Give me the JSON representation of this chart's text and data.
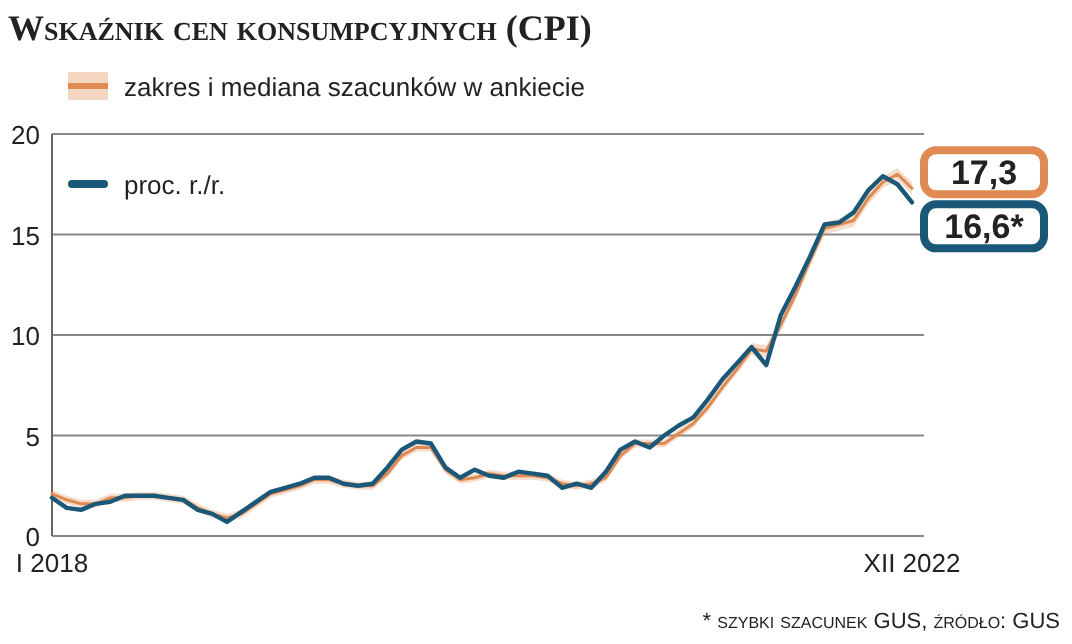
{
  "chart_data": {
    "type": "line",
    "title": "Wskaźnik cen konsumpcyjnych (CPI)",
    "categories": [
      "I 2018",
      null,
      null,
      null,
      null,
      null,
      null,
      null,
      null,
      null,
      null,
      null,
      null,
      null,
      null,
      null,
      null,
      null,
      null,
      null,
      null,
      null,
      null,
      null,
      null,
      null,
      null,
      null,
      null,
      null,
      null,
      null,
      null,
      null,
      null,
      null,
      null,
      null,
      null,
      null,
      null,
      null,
      null,
      null,
      null,
      null,
      null,
      null,
      null,
      null,
      null,
      null,
      null,
      null,
      null,
      null,
      null,
      null,
      null,
      "XII 2022"
    ],
    "ylim": [
      0,
      20
    ],
    "yticks": [
      0,
      5,
      10,
      15,
      20
    ],
    "grid": "y",
    "legend": "top left",
    "series": [
      {
        "name": "zakres i mediana szacunków w ankiecie",
        "color": "#df8a52",
        "values": [
          2.1,
          1.8,
          1.6,
          1.6,
          1.9,
          1.9,
          2.0,
          2.0,
          1.9,
          1.8,
          1.4,
          1.1,
          0.9,
          1.1,
          1.6,
          2.1,
          2.3,
          2.5,
          2.8,
          2.8,
          2.6,
          2.5,
          2.5,
          3.1,
          4.0,
          4.4,
          4.4,
          3.3,
          2.8,
          2.9,
          3.1,
          3.0,
          3.0,
          3.0,
          2.9,
          2.6,
          2.5,
          2.6,
          2.9,
          4.0,
          4.6,
          4.6,
          4.6,
          5.1,
          5.6,
          6.4,
          7.4,
          8.3,
          9.3,
          9.2,
          10.5,
          12.0,
          13.7,
          15.3,
          15.5,
          15.7,
          16.8,
          17.6,
          18.0,
          17.3
        ],
        "lower": [
          1.9,
          1.6,
          1.4,
          1.4,
          1.7,
          1.7,
          1.8,
          1.8,
          1.7,
          1.6,
          1.2,
          0.9,
          0.7,
          0.9,
          1.4,
          1.9,
          2.1,
          2.3,
          2.6,
          2.6,
          2.4,
          2.3,
          2.3,
          2.9,
          3.8,
          4.2,
          4.2,
          3.1,
          2.6,
          2.7,
          2.9,
          2.8,
          2.8,
          2.8,
          2.7,
          2.4,
          2.3,
          2.4,
          2.7,
          3.8,
          4.4,
          4.4,
          4.4,
          4.9,
          5.4,
          6.2,
          7.2,
          8.1,
          9.0,
          8.9,
          10.2,
          11.7,
          13.4,
          15.0,
          15.2,
          15.4,
          16.5,
          17.3,
          17.7,
          17.0
        ],
        "upper": [
          2.3,
          2.0,
          1.8,
          1.8,
          2.1,
          2.1,
          2.2,
          2.2,
          2.1,
          2.0,
          1.6,
          1.3,
          1.1,
          1.3,
          1.8,
          2.3,
          2.5,
          2.7,
          3.0,
          3.0,
          2.8,
          2.7,
          2.7,
          3.3,
          4.2,
          4.6,
          4.6,
          3.5,
          3.0,
          3.1,
          3.3,
          3.2,
          3.2,
          3.2,
          3.1,
          2.8,
          2.7,
          2.8,
          3.1,
          4.2,
          4.8,
          4.8,
          4.8,
          5.3,
          5.8,
          6.6,
          7.6,
          8.5,
          9.6,
          9.5,
          10.8,
          12.3,
          14.0,
          15.6,
          15.8,
          16.0,
          17.1,
          17.9,
          18.3,
          17.6
        ],
        "value_labels": [
          null,
          null,
          null,
          null,
          null,
          null,
          null,
          null,
          null,
          null,
          null,
          null,
          null,
          null,
          null,
          null,
          null,
          null,
          null,
          null,
          null,
          null,
          null,
          null,
          null,
          null,
          null,
          null,
          null,
          null,
          null,
          null,
          null,
          null,
          null,
          null,
          null,
          null,
          null,
          null,
          null,
          null,
          null,
          null,
          null,
          null,
          null,
          null,
          null,
          null,
          null,
          null,
          null,
          null,
          null,
          null,
          null,
          null,
          null,
          "17,3"
        ]
      },
      {
        "name": "proc. r./r.",
        "color": "#1b5878",
        "values": [
          1.9,
          1.4,
          1.3,
          1.6,
          1.7,
          2.0,
          2.0,
          2.0,
          1.9,
          1.8,
          1.3,
          1.1,
          0.7,
          1.2,
          1.7,
          2.2,
          2.4,
          2.6,
          2.9,
          2.9,
          2.6,
          2.5,
          2.6,
          3.4,
          4.3,
          4.7,
          4.6,
          3.4,
          2.9,
          3.3,
          3.0,
          2.9,
          3.2,
          3.1,
          3.0,
          2.4,
          2.6,
          2.4,
          3.2,
          4.3,
          4.7,
          4.4,
          5.0,
          5.5,
          5.9,
          6.8,
          7.8,
          8.6,
          9.4,
          8.5,
          11.0,
          12.4,
          13.9,
          15.5,
          15.6,
          16.1,
          17.2,
          17.9,
          17.5,
          16.6
        ],
        "value_labels": [
          null,
          null,
          null,
          null,
          null,
          null,
          null,
          null,
          null,
          null,
          null,
          null,
          null,
          null,
          null,
          null,
          null,
          null,
          null,
          null,
          null,
          null,
          null,
          null,
          null,
          null,
          null,
          null,
          null,
          null,
          null,
          null,
          null,
          null,
          null,
          null,
          null,
          null,
          null,
          null,
          null,
          null,
          null,
          null,
          null,
          null,
          null,
          null,
          null,
          null,
          null,
          null,
          null,
          null,
          null,
          null,
          null,
          null,
          null,
          "16,6*"
        ]
      }
    ],
    "annotations": [
      "* szybki szacunek GUS, źródło: GUS"
    ]
  }
}
